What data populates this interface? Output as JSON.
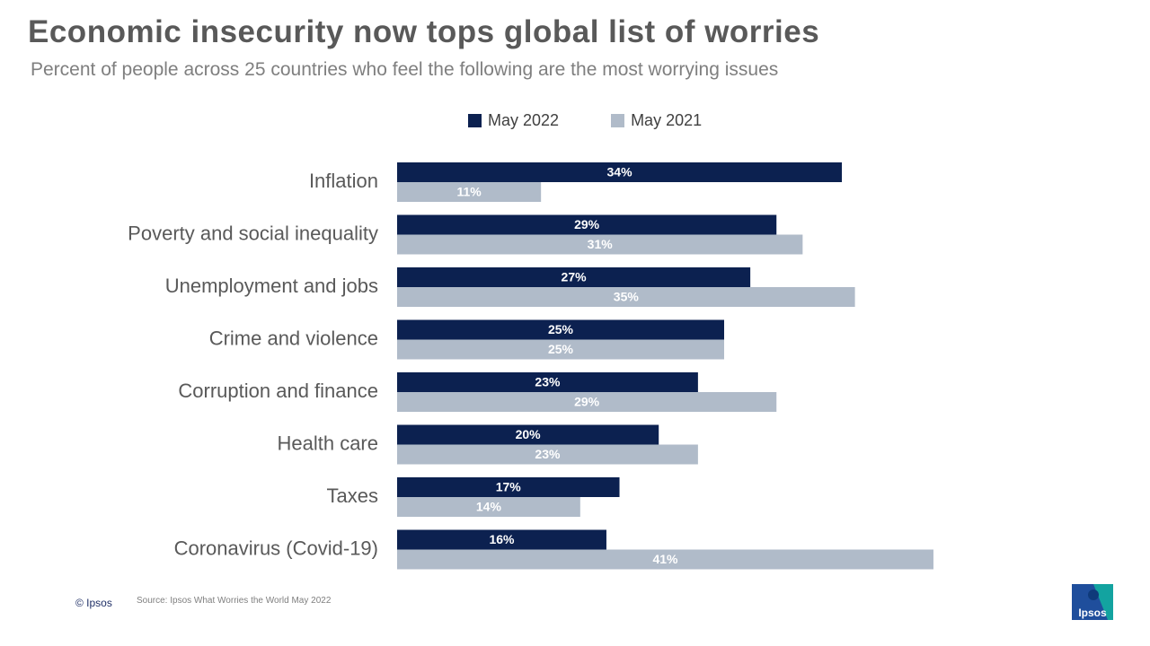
{
  "header": {
    "title": "Economic insecurity now tops global list of worries",
    "subtitle": "Percent of people across 25 countries who feel the following are the most worrying issues"
  },
  "footer": {
    "copyright": "© Ipsos",
    "source": "Source: Ipsos What Worries the World May 2022",
    "logo_text": "Ipsos"
  },
  "colors": {
    "series_2022": "#0c2150",
    "series_2021": "#b0bbc9",
    "logo_blue": "#1f4e9c",
    "logo_teal": "#13a3a0"
  },
  "chart_data": {
    "type": "bar",
    "orientation": "horizontal",
    "title": "Economic insecurity now tops global list of worries",
    "subtitle": "Percent of people across 25 countries who feel the following are the most worrying issues",
    "categories": [
      "Inflation",
      "Poverty and social inequality",
      "Unemployment and jobs",
      "Crime and violence",
      "Corruption and finance",
      "Health care",
      "Taxes",
      "Coronavirus (Covid-19)"
    ],
    "series": [
      {
        "name": "May 2022",
        "values": [
          34,
          29,
          27,
          25,
          23,
          20,
          17,
          16
        ],
        "color": "#0c2150"
      },
      {
        "name": "May 2021",
        "values": [
          11,
          31,
          35,
          25,
          29,
          23,
          14,
          41
        ],
        "color": "#b0bbc9"
      }
    ],
    "value_suffix": "%",
    "xlim": [
      0,
      41
    ],
    "grid": false,
    "legend_position": "top"
  }
}
